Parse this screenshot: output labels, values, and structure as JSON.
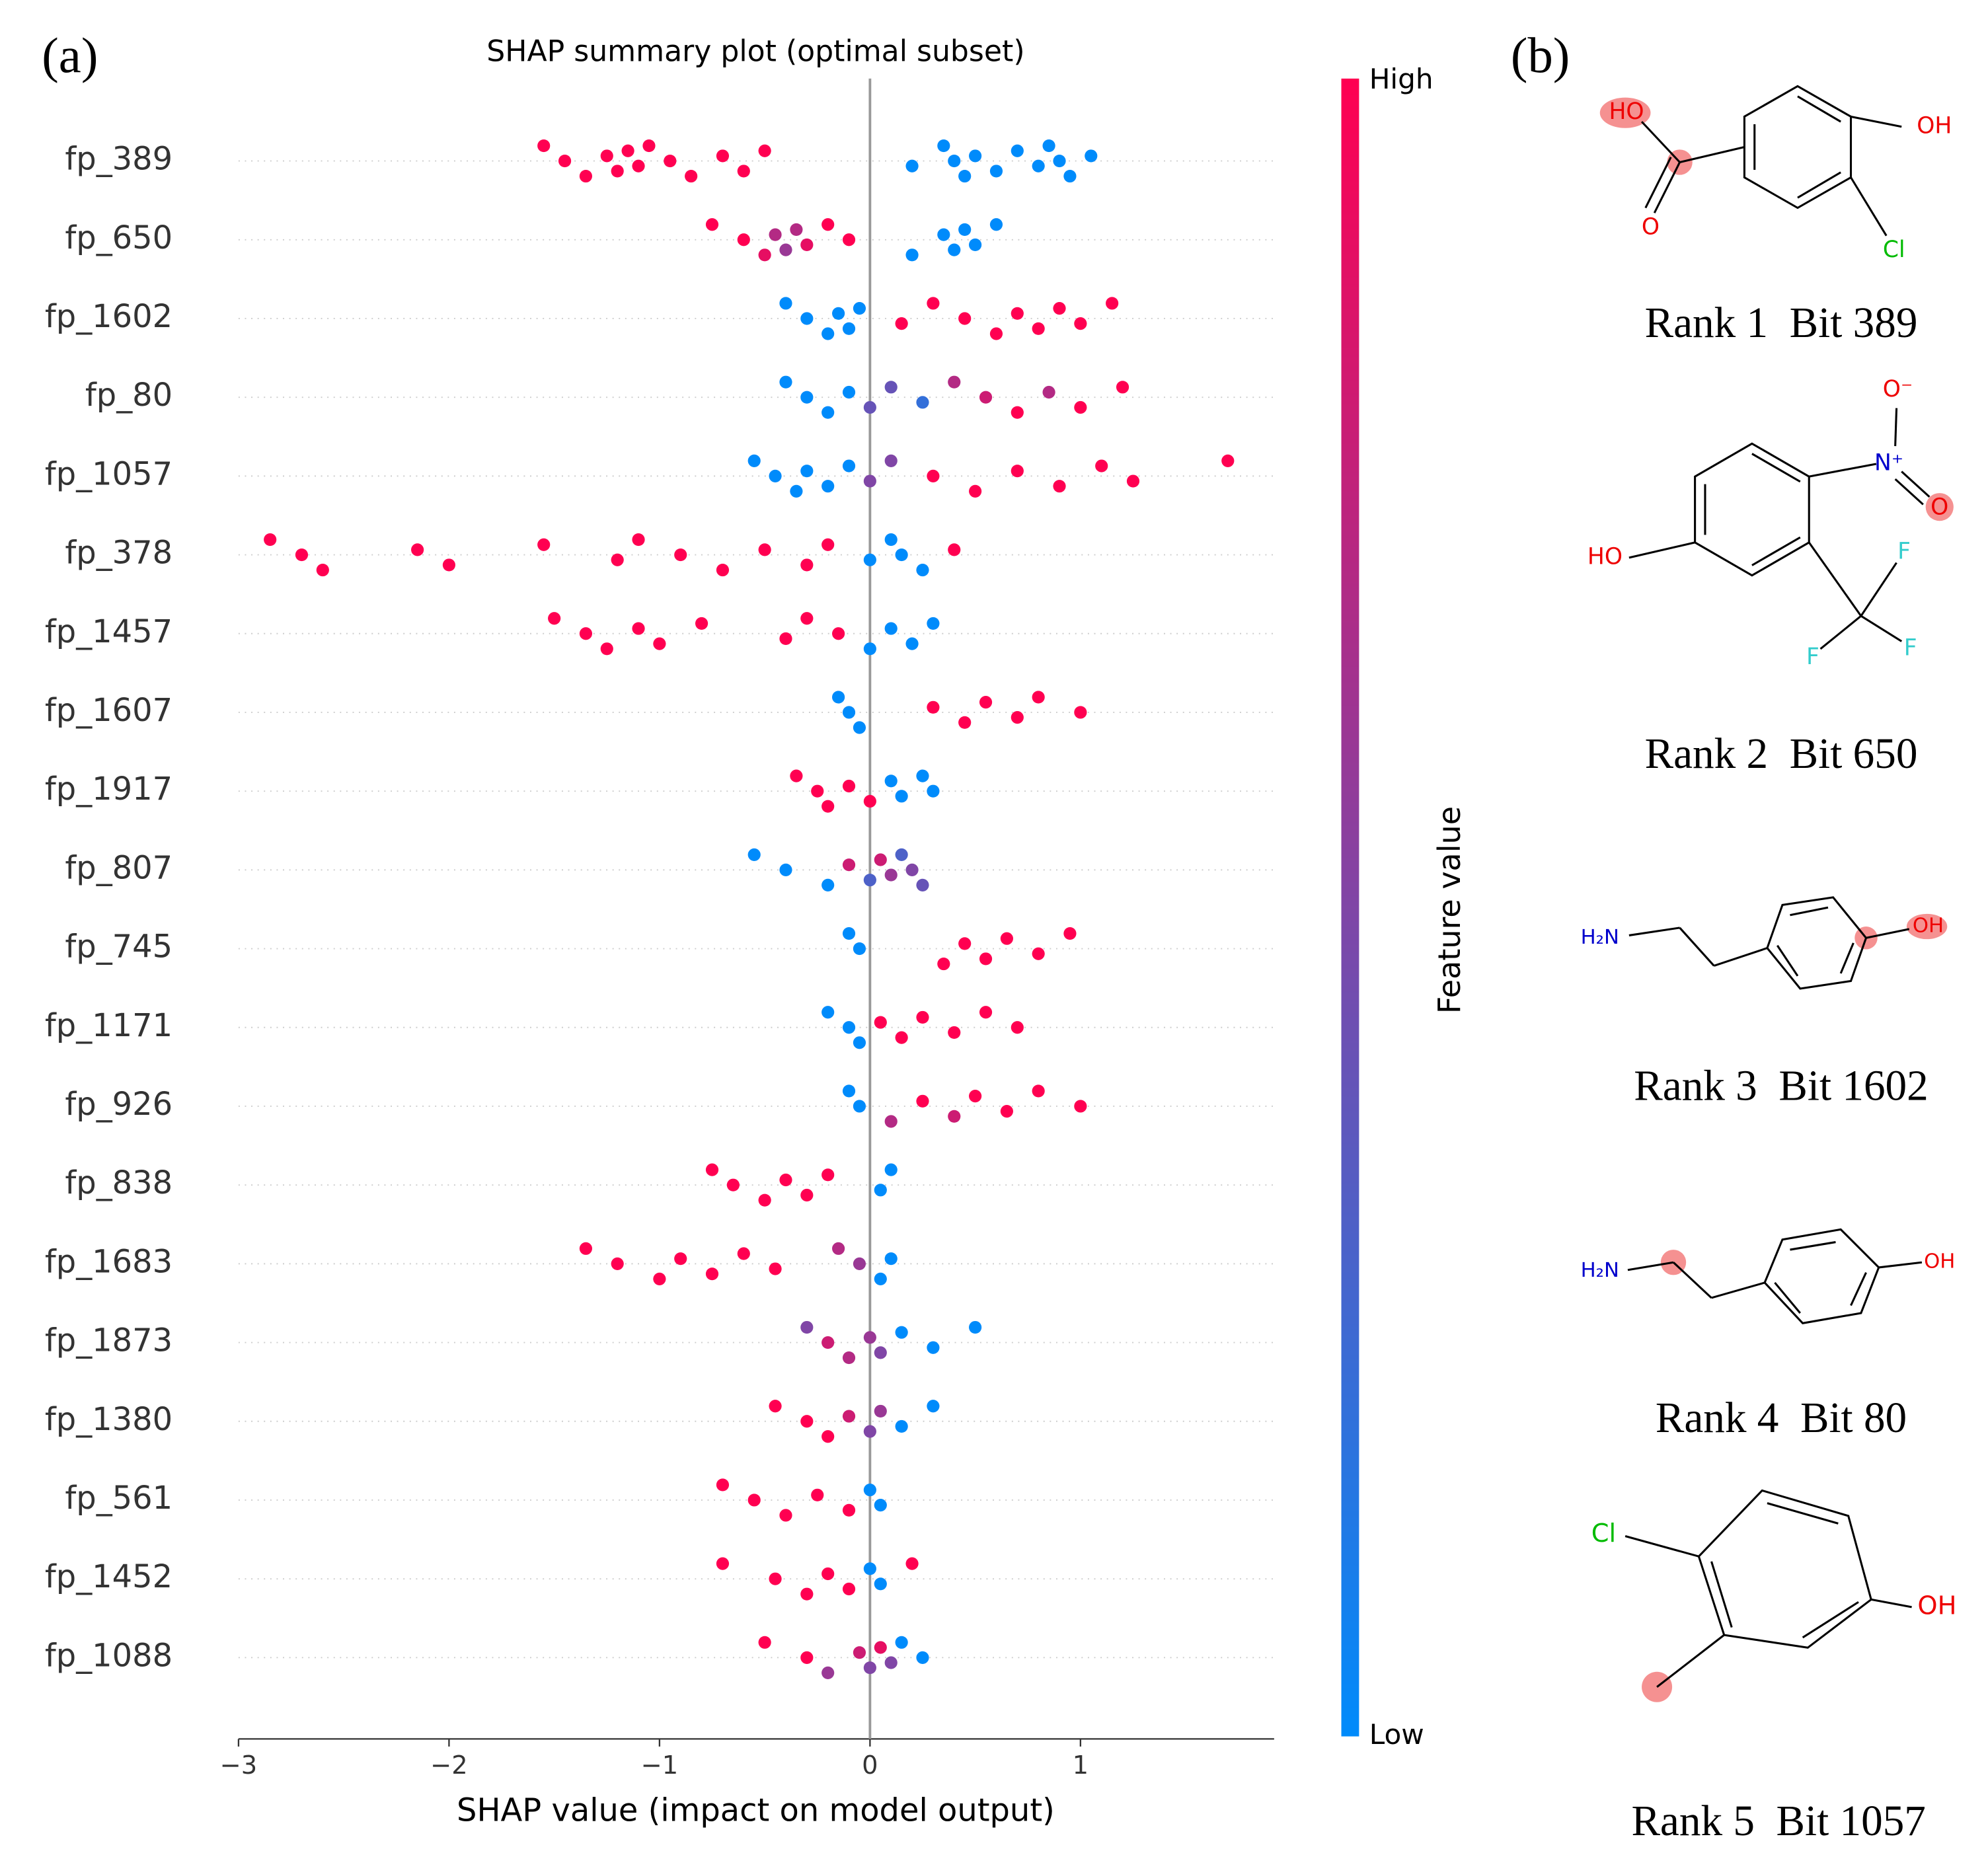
{
  "chart_data": {
    "type": "beeswarm",
    "title": "SHAP summary plot (optimal subset)",
    "xlabel": "SHAP value (impact on model output)",
    "xlim": [
      -3.0,
      1.92
    ],
    "xticks": [
      {
        "value": -3,
        "label": "−3"
      },
      {
        "value": -2,
        "label": "−2"
      },
      {
        "value": -1,
        "label": "−1"
      },
      0,
      1
    ],
    "cmap": [
      "#008bfb",
      "#ff0051"
    ],
    "colorbar_title": "Feature value",
    "colorbar_labels": [
      "High",
      "Low"
    ],
    "grid": true,
    "series": [
      {
        "name": "fp_389",
        "shap": [
          -1.55,
          -1.45,
          -1.35,
          -1.25,
          -1.2,
          -1.15,
          -1.1,
          -1.05,
          -0.95,
          -0.85,
          -0.7,
          -0.6,
          -0.5,
          0.2,
          0.35,
          0.4,
          0.45,
          0.5,
          0.6,
          0.7,
          0.8,
          0.85,
          0.9,
          0.95,
          1.05
        ],
        "feature_value": [
          1,
          1,
          1,
          1,
          1,
          1,
          1,
          1,
          1,
          1,
          1,
          1,
          1,
          0,
          0,
          0,
          0,
          0,
          0,
          0,
          0,
          0,
          0,
          0,
          0
        ]
      },
      {
        "name": "fp_650",
        "shap": [
          -0.75,
          -0.6,
          -0.5,
          -0.45,
          -0.4,
          -0.35,
          -0.3,
          -0.2,
          -0.1,
          0.2,
          0.35,
          0.4,
          0.45,
          0.5,
          0.6
        ],
        "feature_value": [
          1,
          1,
          0.9,
          0.7,
          0.6,
          0.7,
          0.9,
          1,
          1,
          0,
          0,
          0,
          0,
          0,
          0
        ]
      },
      {
        "name": "fp_1602",
        "shap": [
          -0.4,
          -0.3,
          -0.2,
          -0.15,
          -0.1,
          -0.05,
          0.15,
          0.3,
          0.45,
          0.6,
          0.7,
          0.8,
          0.9,
          1.0,
          1.15
        ],
        "feature_value": [
          0,
          0,
          0,
          0,
          0,
          0,
          1,
          1,
          1,
          1,
          1,
          1,
          1,
          1,
          1
        ]
      },
      {
        "name": "fp_80",
        "shap": [
          -0.4,
          -0.3,
          -0.2,
          -0.1,
          0.0,
          0.1,
          0.25,
          0.4,
          0.55,
          0.7,
          0.85,
          1.0,
          1.2
        ],
        "feature_value": [
          0,
          0,
          0,
          0,
          0.4,
          0.4,
          0.2,
          0.7,
          0.8,
          1,
          0.7,
          1,
          1
        ]
      },
      {
        "name": "fp_1057",
        "shap": [
          -0.55,
          -0.45,
          -0.35,
          -0.3,
          -0.2,
          -0.1,
          0.0,
          0.1,
          0.3,
          0.5,
          0.7,
          0.9,
          1.1,
          1.25,
          1.7
        ],
        "feature_value": [
          0,
          0,
          0,
          0,
          0,
          0,
          0.5,
          0.5,
          1,
          1,
          1,
          1,
          1,
          1,
          1
        ]
      },
      {
        "name": "fp_378",
        "shap": [
          -2.85,
          -2.7,
          -2.6,
          -2.15,
          -2.0,
          -1.55,
          -1.2,
          -1.1,
          -0.9,
          -0.7,
          -0.5,
          -0.3,
          -0.2,
          0.0,
          0.1,
          0.15,
          0.25,
          0.4
        ],
        "feature_value": [
          1,
          1,
          1,
          1,
          1,
          1,
          1,
          1,
          1,
          1,
          1,
          1,
          1,
          0,
          0,
          0,
          0,
          1
        ]
      },
      {
        "name": "fp_1457",
        "shap": [
          -1.5,
          -1.35,
          -1.25,
          -1.1,
          -1.0,
          -0.8,
          -0.4,
          -0.3,
          -0.15,
          0.0,
          0.1,
          0.2,
          0.3
        ],
        "feature_value": [
          1,
          1,
          1,
          1,
          1,
          1,
          1,
          1,
          1,
          0,
          0,
          0,
          0
        ]
      },
      {
        "name": "fp_1607",
        "shap": [
          -0.15,
          -0.1,
          -0.05,
          0.3,
          0.45,
          0.55,
          0.7,
          0.8,
          1.0
        ],
        "feature_value": [
          0,
          0,
          0,
          1,
          1,
          1,
          1,
          1,
          1
        ]
      },
      {
        "name": "fp_1917",
        "shap": [
          -0.35,
          -0.25,
          -0.2,
          -0.1,
          0.0,
          0.1,
          0.15,
          0.25,
          0.3
        ],
        "feature_value": [
          1,
          1,
          1,
          1,
          1,
          0,
          0,
          0,
          0
        ]
      },
      {
        "name": "fp_807",
        "shap": [
          -0.55,
          -0.4,
          -0.2,
          -0.1,
          0.0,
          0.05,
          0.1,
          0.15,
          0.2,
          0.25
        ],
        "feature_value": [
          0,
          0,
          0,
          0.8,
          0.3,
          0.8,
          0.6,
          0.3,
          0.5,
          0.4
        ]
      },
      {
        "name": "fp_745",
        "shap": [
          -0.1,
          -0.05,
          0.35,
          0.45,
          0.55,
          0.65,
          0.8,
          0.95
        ],
        "feature_value": [
          0,
          0,
          1,
          1,
          1,
          1,
          1,
          1
        ]
      },
      {
        "name": "fp_1171",
        "shap": [
          -0.2,
          -0.1,
          -0.05,
          0.05,
          0.15,
          0.25,
          0.4,
          0.55,
          0.7
        ],
        "feature_value": [
          0,
          0,
          0,
          1,
          1,
          1,
          1,
          1,
          1
        ]
      },
      {
        "name": "fp_926",
        "shap": [
          -0.1,
          -0.05,
          0.1,
          0.25,
          0.4,
          0.5,
          0.65,
          0.8,
          1.0
        ],
        "feature_value": [
          0,
          0,
          0.7,
          1,
          0.8,
          1,
          1,
          1,
          1
        ]
      },
      {
        "name": "fp_838",
        "shap": [
          -0.75,
          -0.65,
          -0.5,
          -0.4,
          -0.3,
          -0.2,
          0.05,
          0.1
        ],
        "feature_value": [
          1,
          1,
          1,
          1,
          1,
          1,
          0,
          0
        ]
      },
      {
        "name": "fp_1683",
        "shap": [
          -1.35,
          -1.2,
          -1.0,
          -0.9,
          -0.75,
          -0.6,
          -0.45,
          -0.15,
          -0.05,
          0.05,
          0.1
        ],
        "feature_value": [
          1,
          1,
          1,
          1,
          1,
          1,
          1,
          0.7,
          0.6,
          0,
          0
        ]
      },
      {
        "name": "fp_1873",
        "shap": [
          -0.3,
          -0.2,
          -0.1,
          0.0,
          0.05,
          0.15,
          0.3,
          0.5
        ],
        "feature_value": [
          0.5,
          0.8,
          0.7,
          0.6,
          0.5,
          0,
          0,
          0
        ]
      },
      {
        "name": "fp_1380",
        "shap": [
          -0.45,
          -0.3,
          -0.2,
          -0.1,
          0.0,
          0.05,
          0.15,
          0.3
        ],
        "feature_value": [
          1,
          1,
          1,
          0.8,
          0.5,
          0.6,
          0,
          0
        ]
      },
      {
        "name": "fp_561",
        "shap": [
          -0.7,
          -0.55,
          -0.4,
          -0.25,
          -0.1,
          0.0,
          0.05
        ],
        "feature_value": [
          1,
          1,
          1,
          1,
          1,
          0,
          0
        ]
      },
      {
        "name": "fp_1452",
        "shap": [
          -0.7,
          -0.45,
          -0.3,
          -0.2,
          -0.1,
          0.0,
          0.05,
          0.2
        ],
        "feature_value": [
          1,
          1,
          1,
          1,
          1,
          0,
          0,
          1
        ]
      },
      {
        "name": "fp_1088",
        "shap": [
          -0.5,
          -0.3,
          -0.2,
          -0.05,
          0.0,
          0.05,
          0.1,
          0.15,
          0.25
        ],
        "feature_value": [
          1,
          1,
          0.6,
          0.8,
          0.5,
          0.9,
          0.5,
          0,
          0
        ]
      }
    ]
  },
  "panel_labels": [
    "(a)",
    "(b)"
  ],
  "molecules": [
    {
      "caption": "Rank 1  Bit 389",
      "atoms": [
        "HO",
        "OH",
        "O",
        "Cl"
      ]
    },
    {
      "caption": "Rank 2  Bit 650",
      "atoms": [
        "O⁻",
        "N⁺",
        "O",
        "HO",
        "F",
        "F",
        "F"
      ]
    },
    {
      "caption": "Rank 3  Bit 1602",
      "atoms": [
        "H₂N",
        "OH"
      ]
    },
    {
      "caption": "Rank 4  Bit 80",
      "atoms": [
        "H₂N",
        "OH"
      ]
    },
    {
      "caption": "Rank 5  Bit 1057",
      "atoms": [
        "Cl",
        "OH"
      ]
    }
  ]
}
